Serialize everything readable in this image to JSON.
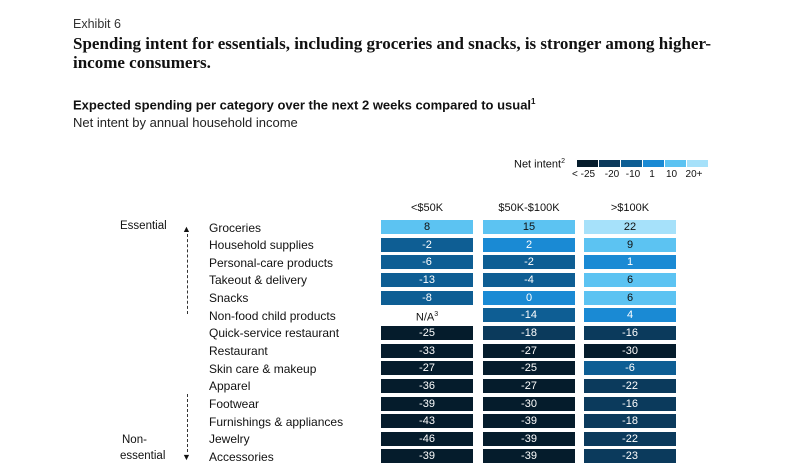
{
  "header": {
    "exhibit": "Exhibit 6",
    "title": "Spending intent for essentials, including groceries and snacks, is stronger among higher-income consumers.",
    "subtitle": "Expected spending per category over the next 2 weeks compared to usual",
    "subtitle_note": "1",
    "subnote": "Net intent by annual household income"
  },
  "legend": {
    "label": "Net intent",
    "label_note": "2",
    "ticks": [
      "< -25",
      "-20",
      "-10",
      "1",
      "10",
      "20+"
    ],
    "colors": [
      "#051c2c",
      "#0b3a5c",
      "#0e5e94",
      "#1a8ad4",
      "#5cc3f2",
      "#a6e1fa"
    ]
  },
  "axis_labels": {
    "essential": "Essential",
    "non_essential_1": "Non-",
    "non_essential_2": "essential"
  },
  "chart_data": {
    "type": "heatmap",
    "title": "Expected spending per category over the next 2 weeks compared to usual",
    "columns": [
      "<$50K",
      "$50K-$100K",
      ">$100K"
    ],
    "rows": [
      {
        "category": "Groceries",
        "values": [
          8,
          15,
          22
        ]
      },
      {
        "category": "Household supplies",
        "values": [
          -2,
          2,
          9
        ]
      },
      {
        "category": "Personal-care products",
        "values": [
          -6,
          -2,
          1
        ]
      },
      {
        "category": "Takeout & delivery",
        "values": [
          -13,
          -4,
          6
        ]
      },
      {
        "category": "Snacks",
        "values": [
          -8,
          0,
          6
        ]
      },
      {
        "category": "Non-food child products",
        "values": [
          null,
          -14,
          4
        ],
        "na_label": "N/A",
        "na_note": "3"
      },
      {
        "category": "Quick-service restaurant",
        "values": [
          -25,
          -18,
          -16
        ]
      },
      {
        "category": "Restaurant",
        "values": [
          -33,
          -27,
          -30
        ]
      },
      {
        "category": "Skin care & makeup",
        "values": [
          -27,
          -25,
          -6
        ]
      },
      {
        "category": "Apparel",
        "values": [
          -36,
          -27,
          -22
        ]
      },
      {
        "category": "Footwear",
        "values": [
          -39,
          -30,
          -16
        ]
      },
      {
        "category": "Furnishings & appliances",
        "values": [
          -43,
          -39,
          -18
        ]
      },
      {
        "category": "Jewelry",
        "values": [
          -46,
          -39,
          -22
        ]
      },
      {
        "category": "Accessories",
        "values": [
          -39,
          -39,
          -23
        ]
      }
    ]
  }
}
